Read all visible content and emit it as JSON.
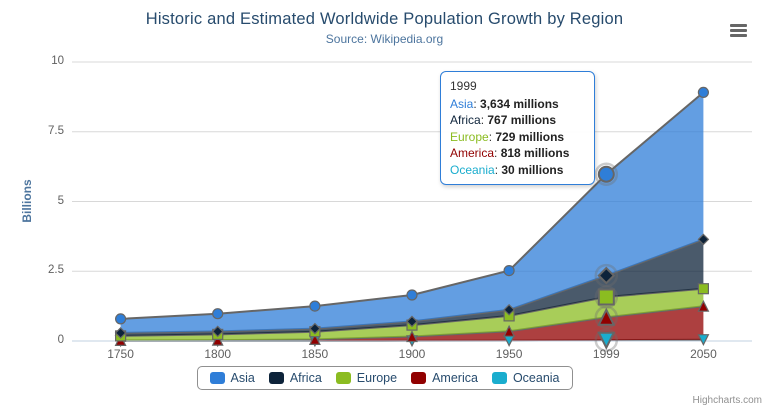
{
  "title": "Historic and Estimated Worldwide Population Growth by Region",
  "subtitle": "Source: Wikipedia.org",
  "y_axis_title": "Billions",
  "credits": "Highcharts.com",
  "chart_data": {
    "type": "area",
    "stacking": "normal",
    "categories": [
      "1750",
      "1800",
      "1850",
      "1900",
      "1950",
      "1999",
      "2050"
    ],
    "series": [
      {
        "name": "Asia",
        "color": "#2f7ed8",
        "marker": "circle",
        "values_millions": [
          502,
          635,
          809,
          947,
          1402,
          3634,
          5268
        ]
      },
      {
        "name": "Africa",
        "color": "#0d233a",
        "marker": "diamond",
        "values_millions": [
          106,
          107,
          111,
          133,
          221,
          767,
          1766
        ]
      },
      {
        "name": "Europe",
        "color": "#8bbc21",
        "marker": "square",
        "values_millions": [
          163,
          203,
          276,
          408,
          547,
          729,
          628
        ]
      },
      {
        "name": "America",
        "color": "#910000",
        "marker": "triangle",
        "values_millions": [
          18,
          31,
          54,
          156,
          339,
          818,
          1201
        ]
      },
      {
        "name": "Oceania",
        "color": "#1aadce",
        "marker": "triangle-down",
        "values_millions": [
          2,
          2,
          2,
          6,
          13,
          30,
          46
        ]
      }
    ],
    "unit": "millions",
    "ylabel": "Billions",
    "ylim": [
      0,
      10
    ],
    "y_ticks": [
      "0",
      "2.5",
      "5",
      "7.5",
      "10"
    ],
    "grid": true,
    "legend_position": "bottom",
    "hovered_category": "1999",
    "hovered_index": 5,
    "fill_opacity": 0.75,
    "line_color": "#666666",
    "grid_color": "#d8d8d8",
    "axis_line_color": "#c0d0e0"
  },
  "tooltip": {
    "header": "1999",
    "rows": [
      {
        "name": "Asia",
        "color": "#2f7ed8",
        "value": "3,634 millions"
      },
      {
        "name": "Africa",
        "color": "#0d233a",
        "value": "767 millions"
      },
      {
        "name": "Europe",
        "color": "#8bbc21",
        "value": "729 millions"
      },
      {
        "name": "America",
        "color": "#910000",
        "value": "818 millions"
      },
      {
        "name": "Oceania",
        "color": "#1aadce",
        "value": "30 millions"
      }
    ]
  }
}
